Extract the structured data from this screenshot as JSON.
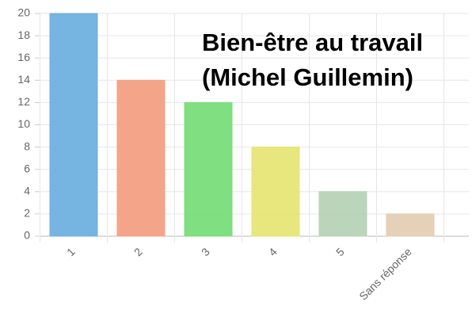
{
  "chart_data": {
    "type": "bar",
    "title": "Bien-être au travail\n(Michel Guillemin)",
    "categories": [
      "1",
      "2",
      "3",
      "4",
      "5",
      "Sans réponse"
    ],
    "values": [
      20,
      14,
      12,
      8,
      4,
      2
    ],
    "colors": [
      "#6fb0e0",
      "#f3a083",
      "#79dd7a",
      "#e6e676",
      "#b7d3b7",
      "#e3cfb3"
    ],
    "ylim": [
      0,
      20
    ],
    "yticks": [
      0,
      2,
      4,
      6,
      8,
      10,
      12,
      14,
      16,
      18,
      20
    ],
    "grid": true
  }
}
